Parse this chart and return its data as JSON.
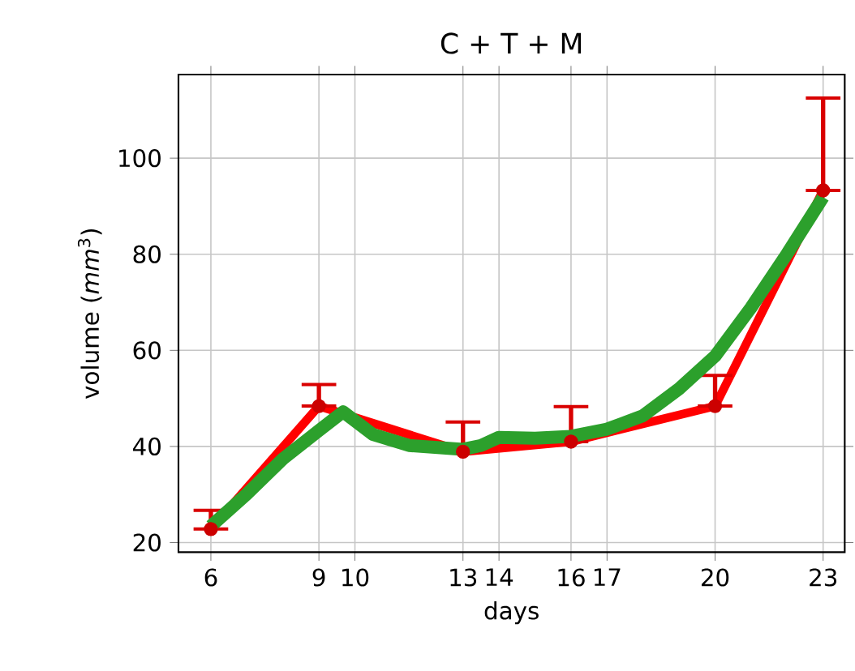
{
  "chart_data": {
    "type": "line",
    "title": "C + T + M",
    "xlabel": "days",
    "ylabel": "volume (*mm*$^{3}$)",
    "x": [
      6,
      9,
      13,
      16,
      20,
      23
    ],
    "series": [
      {
        "color": "#ff0000",
        "marker": "circle",
        "values": [
          22.8,
          48.4,
          38.9,
          41.0,
          48.4,
          93.3
        ],
        "errors": [
          [
            22.8,
            26.7
          ],
          [
            48.4,
            52.9
          ],
          [
            38.9,
            45.1
          ],
          [
            41.0,
            48.3
          ],
          [
            48.4,
            54.8
          ],
          [
            93.3,
            112.5
          ]
        ]
      },
      {
        "type": "line",
        "color": "#2ca02c",
        "marker": "none",
        "x": [
          6,
          7,
          8,
          9,
          9.67,
          10.5,
          11.5,
          13,
          13.5,
          14,
          15,
          16,
          17,
          18,
          19,
          20,
          21,
          22,
          23
        ],
        "values": [
          23.4,
          30.1,
          37.4,
          43.3,
          47.2,
          42.5,
          40.2,
          39.4,
          40.2,
          41.9,
          41.7,
          42.1,
          43.6,
          46.4,
          52.0,
          58.8,
          68.9,
          80.1,
          91.9
        ]
      }
    ],
    "xlim": [
      5.1,
      23.6
    ],
    "ylim": [
      18,
      117.4
    ],
    "xticks": [
      6,
      9,
      10,
      13,
      14,
      16,
      17,
      20,
      23
    ],
    "yticks": [
      20,
      40,
      60,
      80,
      100
    ],
    "grid": true,
    "line_style": "solid"
  }
}
